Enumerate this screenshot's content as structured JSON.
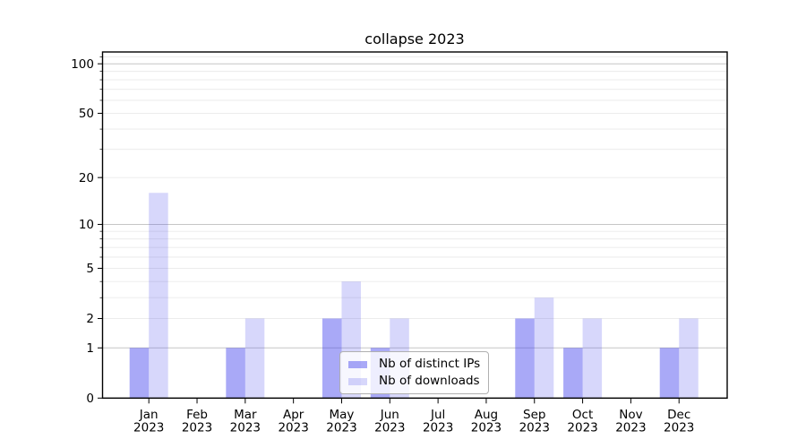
{
  "title": "collapse 2023",
  "chart_data": {
    "type": "bar",
    "title": "collapse 2023",
    "categories": [
      "Jan 2023",
      "Feb 2023",
      "Mar 2023",
      "Apr 2023",
      "May 2023",
      "Jun 2023",
      "Jul 2023",
      "Aug 2023",
      "Sep 2023",
      "Oct 2023",
      "Nov 2023",
      "Dec 2023"
    ],
    "x_tick_line1": [
      "Jan",
      "Feb",
      "Mar",
      "Apr",
      "May",
      "Jun",
      "Jul",
      "Aug",
      "Sep",
      "Oct",
      "Nov",
      "Dec"
    ],
    "x_tick_line2": "2023",
    "series": [
      {
        "name": "Nb of distinct IPs",
        "color": "rgba(68,68,238,0.46)",
        "values": [
          1,
          0,
          1,
          0,
          2,
          1,
          0,
          0,
          2,
          1,
          0,
          1
        ]
      },
      {
        "name": "Nb of downloads",
        "color": "rgba(68,68,238,0.21)",
        "values": [
          16,
          0,
          2,
          0,
          4,
          2,
          0,
          0,
          3,
          2,
          0,
          2
        ]
      }
    ],
    "yscale": "log1p",
    "ylim": [
      0,
      118
    ],
    "yticks_labeled": [
      0,
      1,
      2,
      5,
      10,
      20,
      50,
      100
    ],
    "grid_major": [
      1,
      10,
      100
    ],
    "grid_minor": [
      2,
      3,
      4,
      5,
      6,
      7,
      8,
      9,
      20,
      30,
      40,
      50,
      60,
      70,
      80,
      90,
      110
    ],
    "grid": "on",
    "xlabel": "",
    "ylabel": "",
    "legend_position": "lower center"
  },
  "colors": {
    "grid_major": "#c6c6c6",
    "grid_minor": "#e9e9e9",
    "axis": "#000000",
    "text": "#000000",
    "legend_border": "#b0b0b0",
    "legend_bg": "rgba(255,255,255,0.8)"
  }
}
